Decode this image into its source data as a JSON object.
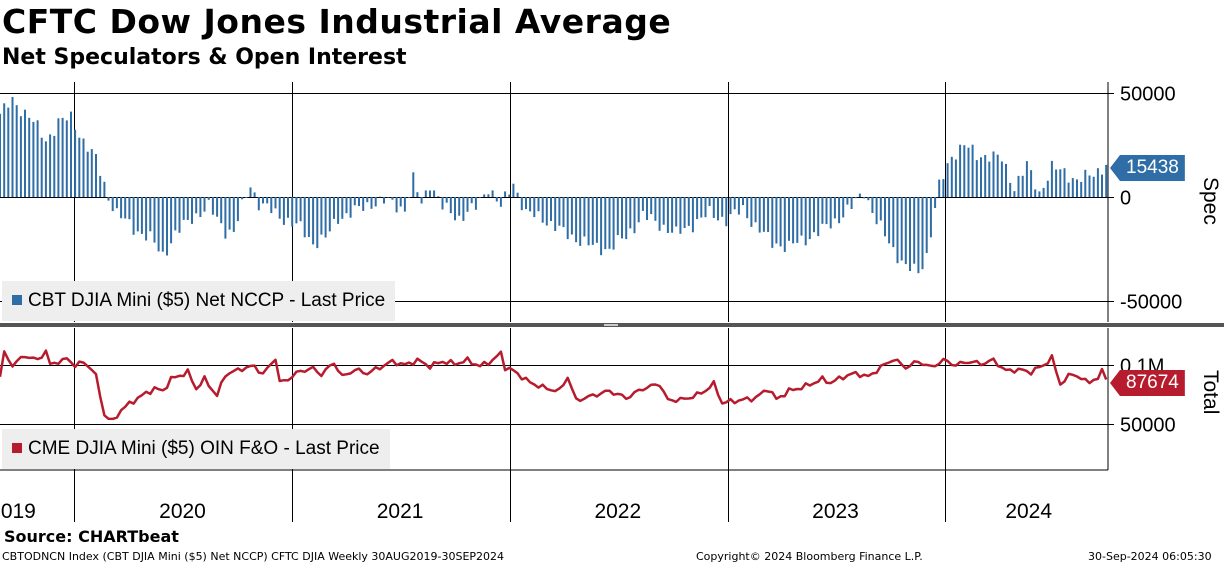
{
  "title": "CFTC Dow Jones Industrial Average",
  "subtitle": "Net Speculators & Open Interest",
  "source": "Source: CHARTbeat",
  "footer": {
    "left": "CBTODNCN Index (CBT DJIA Mini ($5) Net NCCP) CFTC DJIA  Weekly 30AUG2019-30SEP2024",
    "center": "Copyright© 2024 Bloomberg Finance L.P.",
    "right": "30-Sep-2024 06:05:30"
  },
  "colors": {
    "bar": "#2e6da6",
    "line": "#b71c2e",
    "legend_bg": "#eeeeee"
  },
  "chart_data": [
    {
      "type": "bar",
      "legend": "CBT DJIA Mini ($5) Net NCCP - Last Price",
      "axis_title": "Spec",
      "last_value_label": "15438",
      "ylim": [
        -50000,
        50000
      ],
      "yticks": [
        {
          "value": 50000,
          "label": "50000"
        },
        {
          "value": 0,
          "label": "0"
        },
        {
          "value": -50000,
          "label": "-50000"
        }
      ],
      "start": "2019-08-30",
      "end": "2024-09-30",
      "frequency": "weekly",
      "anchors": [
        [
          "2019-08-30",
          40000
        ],
        [
          "2019-09-20",
          46000
        ],
        [
          "2019-10-18",
          39000
        ],
        [
          "2019-11-15",
          27000
        ],
        [
          "2019-12-06",
          36000
        ],
        [
          "2019-12-27",
          38000
        ],
        [
          "2020-01-17",
          27000
        ],
        [
          "2020-02-07",
          18000
        ],
        [
          "2020-02-28",
          0
        ],
        [
          "2020-03-13",
          -8000
        ],
        [
          "2020-04-10",
          -15000
        ],
        [
          "2020-05-08",
          -20000
        ],
        [
          "2020-05-29",
          -28000
        ],
        [
          "2020-06-19",
          -18000
        ],
        [
          "2020-07-17",
          -10000
        ],
        [
          "2020-08-14",
          -5000
        ],
        [
          "2020-09-11",
          -16000
        ],
        [
          "2020-09-25",
          -17000
        ],
        [
          "2020-10-09",
          -5000
        ],
        [
          "2020-10-23",
          6000
        ],
        [
          "2020-11-06",
          -3000
        ],
        [
          "2020-12-04",
          -8000
        ],
        [
          "2021-01-15",
          -15000
        ],
        [
          "2021-02-05",
          -22000
        ],
        [
          "2021-02-26",
          -20000
        ],
        [
          "2021-03-19",
          -10000
        ],
        [
          "2021-04-16",
          -7000
        ],
        [
          "2021-05-14",
          -3000
        ],
        [
          "2021-06-11",
          -2000
        ],
        [
          "2021-07-09",
          -6000
        ],
        [
          "2021-07-23",
          8000
        ],
        [
          "2021-08-06",
          -3000
        ],
        [
          "2021-08-20",
          7000
        ],
        [
          "2021-09-10",
          -5000
        ],
        [
          "2021-10-08",
          -10000
        ],
        [
          "2021-11-05",
          -5000
        ],
        [
          "2021-11-26",
          5000
        ],
        [
          "2021-12-17",
          -5000
        ],
        [
          "2022-01-07",
          7000
        ],
        [
          "2022-01-28",
          -8000
        ],
        [
          "2022-02-25",
          -10000
        ],
        [
          "2022-03-25",
          -16000
        ],
        [
          "2022-04-22",
          -20000
        ],
        [
          "2022-05-20",
          -24000
        ],
        [
          "2022-06-17",
          -25000
        ],
        [
          "2022-07-15",
          -19000
        ],
        [
          "2022-08-12",
          -9000
        ],
        [
          "2022-09-09",
          -13000
        ],
        [
          "2022-10-07",
          -18000
        ],
        [
          "2022-11-04",
          -13000
        ],
        [
          "2022-12-02",
          -8000
        ],
        [
          "2022-12-30",
          -11000
        ],
        [
          "2023-01-27",
          -6000
        ],
        [
          "2023-02-17",
          -14000
        ],
        [
          "2023-03-17",
          -22000
        ],
        [
          "2023-04-14",
          -24000
        ],
        [
          "2023-05-12",
          -20000
        ],
        [
          "2023-06-09",
          -16000
        ],
        [
          "2023-07-07",
          -10000
        ],
        [
          "2023-07-28",
          -5000
        ],
        [
          "2023-08-18",
          3000
        ],
        [
          "2023-09-08",
          -12000
        ],
        [
          "2023-10-06",
          -25000
        ],
        [
          "2023-10-27",
          -34000
        ],
        [
          "2023-11-17",
          -36000
        ],
        [
          "2023-12-01",
          -28000
        ],
        [
          "2023-12-22",
          5000
        ],
        [
          "2024-01-12",
          20000
        ],
        [
          "2024-02-02",
          25000
        ],
        [
          "2024-02-23",
          20000
        ],
        [
          "2024-03-15",
          20000
        ],
        [
          "2024-04-05",
          18000
        ],
        [
          "2024-04-26",
          5000
        ],
        [
          "2024-05-17",
          15000
        ],
        [
          "2024-06-07",
          2000
        ],
        [
          "2024-06-28",
          14000
        ],
        [
          "2024-07-19",
          12000
        ],
        [
          "2024-08-09",
          8000
        ],
        [
          "2024-08-30",
          10000
        ],
        [
          "2024-09-27",
          15438
        ]
      ]
    },
    {
      "type": "line",
      "legend": "CME DJIA Mini ($5) OIN F&O - Last Price",
      "axis_title": "Total",
      "last_value_label": "87674",
      "ylim": [
        25000,
        115000
      ],
      "yticks": [
        {
          "value": 100000,
          "label": "0.1M"
        },
        {
          "value": 50000,
          "label": "50000"
        }
      ],
      "start": "2019-08-30",
      "end": "2024-09-30",
      "frequency": "weekly",
      "anchors": [
        [
          "2019-08-30",
          90000
        ],
        [
          "2019-09-06",
          110000
        ],
        [
          "2019-09-20",
          100000
        ],
        [
          "2019-10-11",
          108000
        ],
        [
          "2019-11-01",
          104000
        ],
        [
          "2019-11-15",
          112000
        ],
        [
          "2019-11-22",
          100000
        ],
        [
          "2019-12-06",
          103000
        ],
        [
          "2019-12-20",
          105000
        ],
        [
          "2020-01-03",
          100000
        ],
        [
          "2020-01-17",
          102000
        ],
        [
          "2020-01-31",
          97000
        ],
        [
          "2020-02-07",
          90000
        ],
        [
          "2020-02-21",
          58000
        ],
        [
          "2020-03-06",
          52000
        ],
        [
          "2020-03-20",
          62000
        ],
        [
          "2020-04-17",
          72000
        ],
        [
          "2020-05-15",
          80000
        ],
        [
          "2020-05-29",
          78000
        ],
        [
          "2020-06-12",
          88000
        ],
        [
          "2020-07-10",
          94000
        ],
        [
          "2020-07-24",
          80000
        ],
        [
          "2020-08-07",
          88000
        ],
        [
          "2020-08-28",
          74000
        ],
        [
          "2020-09-11",
          92000
        ],
        [
          "2020-10-09",
          97000
        ],
        [
          "2020-10-30",
          99000
        ],
        [
          "2020-11-13",
          92000
        ],
        [
          "2020-12-04",
          106000
        ],
        [
          "2020-12-11",
          85000
        ],
        [
          "2020-12-25",
          88000
        ],
        [
          "2021-01-15",
          95000
        ],
        [
          "2021-02-05",
          97000
        ],
        [
          "2021-02-19",
          92000
        ],
        [
          "2021-03-12",
          102000
        ],
        [
          "2021-03-26",
          90000
        ],
        [
          "2021-04-16",
          96000
        ],
        [
          "2021-05-07",
          93000
        ],
        [
          "2021-05-28",
          98000
        ],
        [
          "2021-06-18",
          103000
        ],
        [
          "2021-07-09",
          100000
        ],
        [
          "2021-07-30",
          104000
        ],
        [
          "2021-08-20",
          99000
        ],
        [
          "2021-09-10",
          103000
        ],
        [
          "2021-10-01",
          101000
        ],
        [
          "2021-10-22",
          104000
        ],
        [
          "2021-11-12",
          99000
        ],
        [
          "2021-12-03",
          104000
        ],
        [
          "2021-12-17",
          110000
        ],
        [
          "2021-12-24",
          98000
        ],
        [
          "2022-01-07",
          95000
        ],
        [
          "2022-02-04",
          85000
        ],
        [
          "2022-03-04",
          80000
        ],
        [
          "2022-03-25",
          78000
        ],
        [
          "2022-04-08",
          90000
        ],
        [
          "2022-04-22",
          70000
        ],
        [
          "2022-05-20",
          74000
        ],
        [
          "2022-06-17",
          78000
        ],
        [
          "2022-07-15",
          72000
        ],
        [
          "2022-08-12",
          80000
        ],
        [
          "2022-09-09",
          84000
        ],
        [
          "2022-09-23",
          70000
        ],
        [
          "2022-10-21",
          71000
        ],
        [
          "2022-11-18",
          76000
        ],
        [
          "2022-12-09",
          84000
        ],
        [
          "2022-12-23",
          68000
        ],
        [
          "2023-01-20",
          70000
        ],
        [
          "2023-02-17",
          72000
        ],
        [
          "2023-03-10",
          80000
        ],
        [
          "2023-03-24",
          71000
        ],
        [
          "2023-04-14",
          78000
        ],
        [
          "2023-05-12",
          82000
        ],
        [
          "2023-06-09",
          88000
        ],
        [
          "2023-06-23",
          85000
        ],
        [
          "2023-07-14",
          90000
        ],
        [
          "2023-08-04",
          93000
        ],
        [
          "2023-08-25",
          90000
        ],
        [
          "2023-09-15",
          98000
        ],
        [
          "2023-10-06",
          105000
        ],
        [
          "2023-10-27",
          98000
        ],
        [
          "2023-11-17",
          103000
        ],
        [
          "2023-12-08",
          98000
        ],
        [
          "2023-12-29",
          104000
        ],
        [
          "2024-01-19",
          100000
        ],
        [
          "2024-02-09",
          103000
        ],
        [
          "2024-03-01",
          101000
        ],
        [
          "2024-03-22",
          104000
        ],
        [
          "2024-04-12",
          95000
        ],
        [
          "2024-05-03",
          96000
        ],
        [
          "2024-05-24",
          94000
        ],
        [
          "2024-06-14",
          100000
        ],
        [
          "2024-06-28",
          106000
        ],
        [
          "2024-07-12",
          84000
        ],
        [
          "2024-08-02",
          93000
        ],
        [
          "2024-08-23",
          86000
        ],
        [
          "2024-09-13",
          88000
        ],
        [
          "2024-09-20",
          95000
        ],
        [
          "2024-09-27",
          87674
        ]
      ]
    }
  ],
  "x_axis": {
    "labels": [
      {
        "label": "2019",
        "center": "2019-09-20"
      },
      {
        "label": "2020",
        "center": "2020-07-01"
      },
      {
        "label": "2021",
        "center": "2021-07-01"
      },
      {
        "label": "2022",
        "center": "2022-07-01"
      },
      {
        "label": "2023",
        "center": "2023-07-01"
      },
      {
        "label": "2024",
        "center": "2024-05-20"
      }
    ],
    "year_starts": [
      "2020-01-01",
      "2021-01-01",
      "2022-01-01",
      "2023-01-01",
      "2024-01-01"
    ]
  }
}
